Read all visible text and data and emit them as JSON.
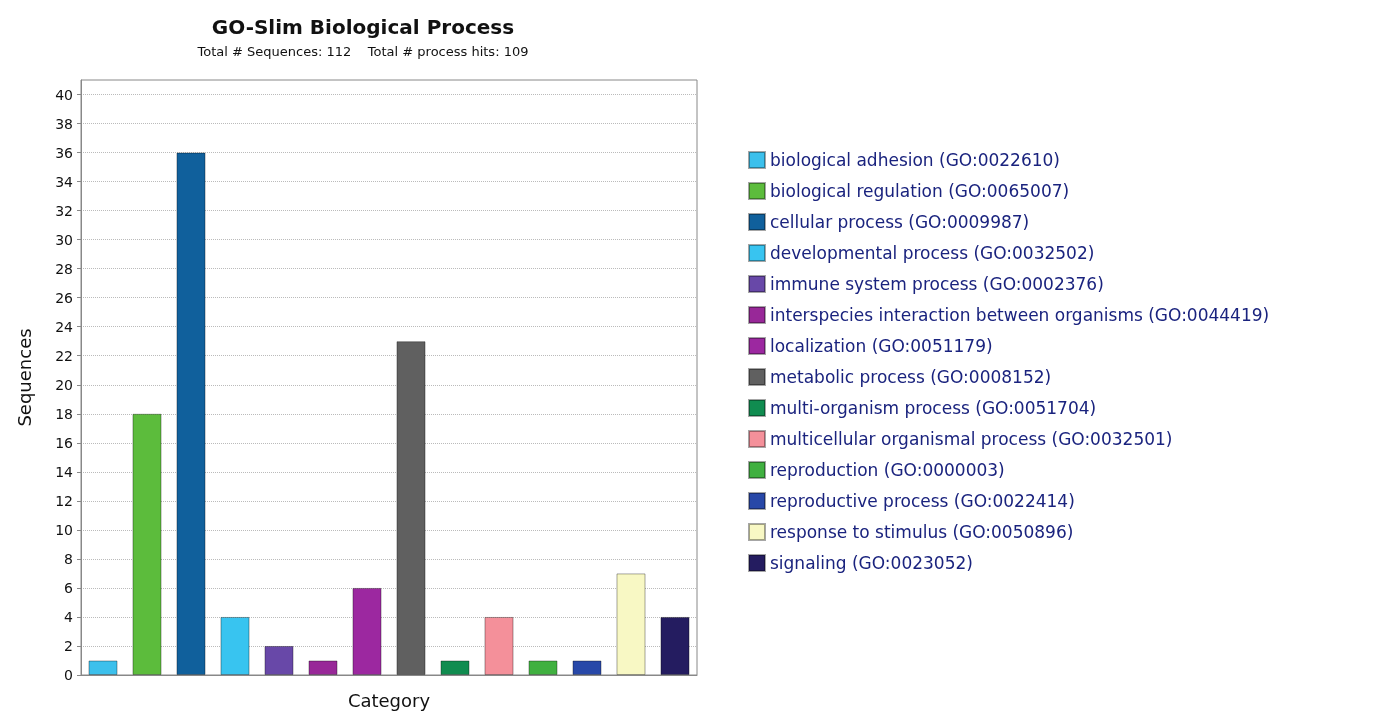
{
  "chart_data": {
    "type": "bar",
    "title": "GO-Slim Biological Process",
    "subtitle": "Total # Sequences: 112    Total # process hits: 109",
    "xlabel": "Category",
    "ylabel": "Sequences",
    "categories": [
      null,
      null,
      null,
      null,
      null,
      null,
      null,
      null,
      null,
      null,
      null,
      null,
      null,
      null
    ],
    "stacked": true,
    "ylim": [
      0,
      41
    ],
    "yticks": [
      0,
      2,
      4,
      6,
      8,
      10,
      12,
      14,
      16,
      18,
      20,
      22,
      24,
      26,
      28,
      30,
      32,
      34,
      36,
      38,
      40
    ],
    "grid": "y",
    "legend": "right",
    "tick_labels": "y",
    "series": [
      {
        "name": "biological adhesion (GO:0022610)",
        "color": "#3cc0ec",
        "values": [
          1,
          null,
          null,
          null,
          null,
          null,
          null,
          null,
          null,
          null,
          null,
          null,
          null,
          null
        ]
      },
      {
        "name": "biological regulation (GO:0065007)",
        "color": "#5cbc3c",
        "values": [
          null,
          18,
          null,
          null,
          null,
          null,
          null,
          null,
          null,
          null,
          null,
          null,
          null,
          null
        ]
      },
      {
        "name": "cellular process (GO:0009987)",
        "color": "#10609c",
        "values": [
          null,
          null,
          36,
          null,
          null,
          null,
          null,
          null,
          null,
          null,
          null,
          null,
          null,
          null
        ]
      },
      {
        "name": "developmental process (GO:0032502)",
        "color": "#38c4f0",
        "values": [
          null,
          null,
          null,
          4,
          null,
          null,
          null,
          null,
          null,
          null,
          null,
          null,
          null,
          null
        ]
      },
      {
        "name": "immune system process (GO:0002376)",
        "color": "#6848a8",
        "values": [
          null,
          null,
          null,
          null,
          2,
          null,
          null,
          null,
          null,
          null,
          null,
          null,
          null,
          null
        ]
      },
      {
        "name": "interspecies interaction between organisms (GO:0044419)",
        "color": "#982898",
        "values": [
          null,
          null,
          null,
          null,
          null,
          1,
          null,
          null,
          null,
          null,
          null,
          null,
          null,
          null
        ]
      },
      {
        "name": "localization (GO:0051179)",
        "color": "#9c28a0",
        "values": [
          null,
          null,
          null,
          null,
          null,
          null,
          6,
          null,
          null,
          null,
          null,
          null,
          null,
          null
        ]
      },
      {
        "name": "metabolic process (GO:0008152)",
        "color": "#606060",
        "values": [
          null,
          null,
          null,
          null,
          null,
          null,
          null,
          23,
          null,
          null,
          null,
          null,
          null,
          null
        ]
      },
      {
        "name": "multi-organism process (GO:0051704)",
        "color": "#108c50",
        "values": [
          null,
          null,
          null,
          null,
          null,
          null,
          null,
          null,
          1,
          null,
          null,
          null,
          null,
          null
        ]
      },
      {
        "name": "multicellular organismal process (GO:0032501)",
        "color": "#f4909a",
        "values": [
          null,
          null,
          null,
          null,
          null,
          null,
          null,
          null,
          null,
          4,
          null,
          null,
          null,
          null
        ]
      },
      {
        "name": "reproduction (GO:0000003)",
        "color": "#40b040",
        "values": [
          null,
          null,
          null,
          null,
          null,
          null,
          null,
          null,
          null,
          null,
          1,
          null,
          null,
          null
        ]
      },
      {
        "name": "reproductive process (GO:0022414)",
        "color": "#2848a8",
        "values": [
          null,
          null,
          null,
          null,
          null,
          null,
          null,
          null,
          null,
          null,
          null,
          1,
          null,
          null
        ]
      },
      {
        "name": "response to stimulus (GO:0050896)",
        "color": "#f8f8c4",
        "values": [
          null,
          null,
          null,
          null,
          null,
          null,
          null,
          null,
          null,
          null,
          null,
          null,
          7,
          null
        ]
      },
      {
        "name": "signaling (GO:0023052)",
        "color": "#241c60",
        "values": [
          null,
          null,
          null,
          null,
          null,
          null,
          null,
          null,
          null,
          null,
          null,
          null,
          null,
          4
        ]
      }
    ]
  }
}
